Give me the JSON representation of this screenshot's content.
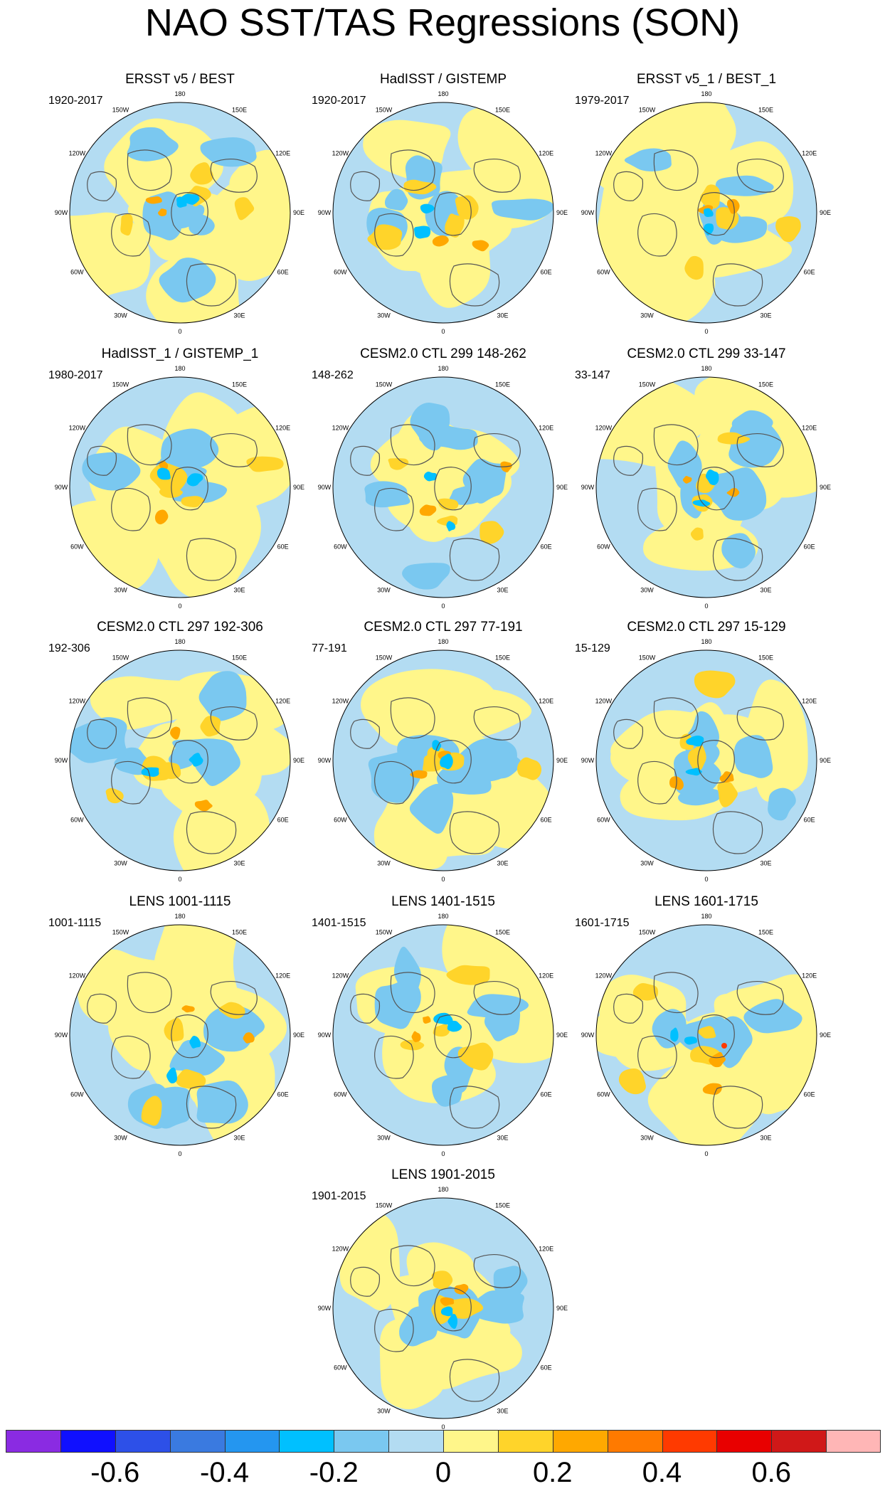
{
  "title": "NAO SST/TAS Regressions (SON)",
  "longitude_labels": [
    "180",
    "150E",
    "120E",
    "90E",
    "60E",
    "30E",
    "0",
    "30W",
    "60W",
    "90W",
    "120W",
    "150W"
  ],
  "panels": [
    {
      "title": "ERSST v5 / BEST",
      "period": "1920-2017"
    },
    {
      "title": "HadISST / GISTEMP",
      "period": "1920-2017"
    },
    {
      "title": "ERSST v5_1 / BEST_1",
      "period": "1979-2017"
    },
    {
      "title": "HadISST_1 / GISTEMP_1",
      "period": "1980-2017"
    },
    {
      "title": "CESM2.0 CTL 299 148-262",
      "period": "148-262"
    },
    {
      "title": "CESM2.0 CTL 299 33-147",
      "period": "33-147"
    },
    {
      "title": "CESM2.0 CTL 297 192-306",
      "period": "192-306"
    },
    {
      "title": "CESM2.0 CTL 297 77-191",
      "period": "77-191"
    },
    {
      "title": "CESM2.0 CTL 297 15-129",
      "period": "15-129"
    },
    {
      "title": "LENS 1001-1115",
      "period": "1001-1115"
    },
    {
      "title": "LENS 1401-1515",
      "period": "1401-1515"
    },
    {
      "title": "LENS 1601-1715",
      "period": "1601-1715"
    },
    {
      "title": "LENS 1901-2015",
      "period": "1901-2015"
    }
  ],
  "colorbar": {
    "colors": [
      "#8a2be2",
      "#1010ff",
      "#2d50e8",
      "#3a7ae0",
      "#2496f0",
      "#00c0ff",
      "#7ac8f0",
      "#b3dcf2",
      "#fff68a",
      "#ffd42a",
      "#ffa800",
      "#ff7a00",
      "#ff3a00",
      "#e80000",
      "#d01818",
      "#ffb6b6"
    ],
    "tick_labels": [
      "-0.6",
      "-0.4",
      "-0.2",
      "0",
      "0.2",
      "0.4",
      "0.6"
    ]
  }
}
